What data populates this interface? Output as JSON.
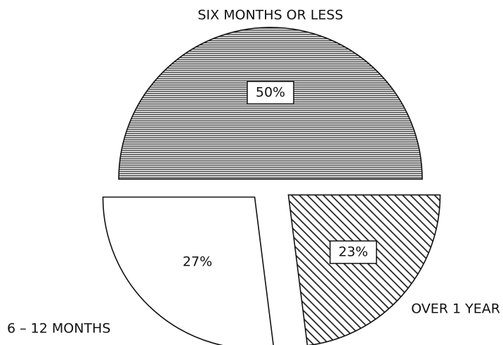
{
  "chart_data": {
    "type": "pie",
    "categories": [
      "SIX MONTHS OR LESS",
      "OVER 1 YEAR",
      "6 – 12 MONTHS"
    ],
    "values": [
      50,
      23,
      27
    ],
    "value_labels": [
      "50%",
      "23%",
      "27%"
    ],
    "patterns": [
      "horizontal",
      "diagonal",
      "none"
    ]
  }
}
